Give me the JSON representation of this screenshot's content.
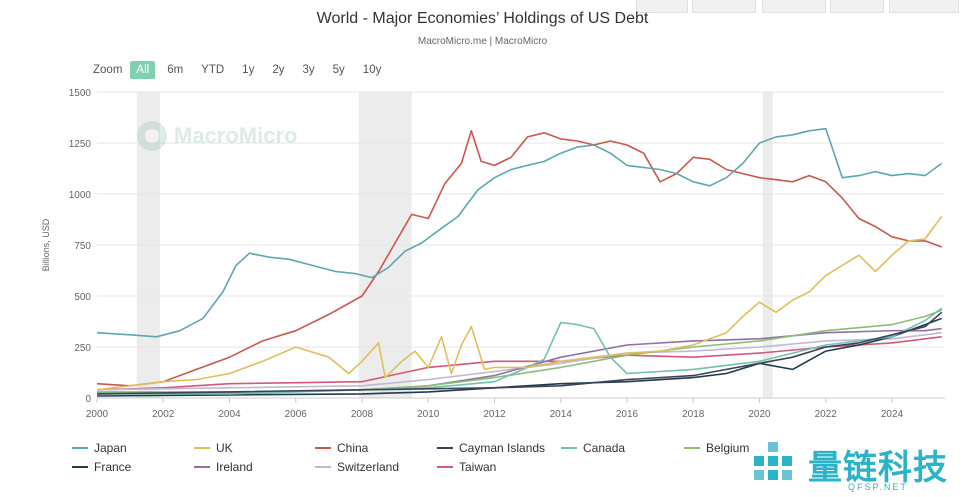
{
  "header": {
    "title": "World - Major Economies’ Holdings of US Debt",
    "subtitle": "MacroMicro.me | MacroMicro"
  },
  "zoom": {
    "label": "Zoom",
    "buttons": [
      "All",
      "6m",
      "YTD",
      "1y",
      "2y",
      "3y",
      "5y",
      "10y"
    ],
    "active": "All"
  },
  "watermark": {
    "text": "MacroMicro"
  },
  "brand": {
    "text": "量链科技",
    "sub": "QFSP.NET",
    "color": "#2bb3c7"
  },
  "chart_data": {
    "type": "line",
    "title": "World - Major Economies’ Holdings of US Debt",
    "ylabel": "Billions, USD",
    "xlabel": "",
    "xlim": [
      2000,
      2025.6
    ],
    "ylim": [
      0,
      1500
    ],
    "yticks": [
      0,
      250,
      500,
      750,
      1000,
      1250,
      1500
    ],
    "xticks": [
      2000,
      2002,
      2004,
      2006,
      2008,
      2010,
      2012,
      2014,
      2016,
      2018,
      2020,
      2022,
      2024
    ],
    "grid": true,
    "legend_position": "bottom",
    "recession_bands": [
      [
        2001.2,
        2001.9
      ],
      [
        2007.9,
        2009.5
      ],
      [
        2020.1,
        2020.4
      ]
    ],
    "series": [
      {
        "name": "Japan",
        "color": "#5aa8b0",
        "x": [
          2000,
          2001,
          2001.8,
          2002.5,
          2003.2,
          2003.8,
          2004.2,
          2004.6,
          2005.2,
          2005.8,
          2006.5,
          2007.2,
          2007.8,
          2008.3,
          2008.8,
          2009.3,
          2009.8,
          2010.3,
          2010.9,
          2011.5,
          2012,
          2012.5,
          2013,
          2013.5,
          2014,
          2014.5,
          2015,
          2015.5,
          2016,
          2016.5,
          2017,
          2017.5,
          2018,
          2018.5,
          2019,
          2019.5,
          2020,
          2020.5,
          2021,
          2021.5,
          2022,
          2022.5,
          2023,
          2023.5,
          2024,
          2024.5,
          2025,
          2025.5
        ],
        "y": [
          320,
          310,
          300,
          330,
          390,
          520,
          650,
          710,
          690,
          680,
          650,
          620,
          610,
          590,
          640,
          720,
          760,
          820,
          890,
          1020,
          1080,
          1120,
          1140,
          1160,
          1200,
          1230,
          1240,
          1200,
          1140,
          1130,
          1120,
          1100,
          1060,
          1040,
          1080,
          1150,
          1250,
          1280,
          1290,
          1310,
          1320,
          1080,
          1090,
          1110,
          1090,
          1100,
          1090,
          1150
        ]
      },
      {
        "name": "UK",
        "color": "#e0bf5a",
        "x": [
          2000,
          2001,
          2002,
          2003,
          2004,
          2005,
          2006,
          2007,
          2007.6,
          2008,
          2008.5,
          2008.7,
          2009.2,
          2009.6,
          2010,
          2010.4,
          2010.7,
          2011,
          2011.3,
          2011.7,
          2012,
          2013,
          2014,
          2015,
          2016,
          2017,
          2018,
          2018.5,
          2019,
          2019.5,
          2020,
          2020.5,
          2021,
          2021.5,
          2022,
          2022.5,
          2023,
          2023.5,
          2024,
          2024.5,
          2025,
          2025.5
        ],
        "y": [
          40,
          60,
          80,
          90,
          120,
          180,
          250,
          200,
          120,
          180,
          270,
          100,
          180,
          230,
          150,
          300,
          120,
          260,
          350,
          140,
          150,
          150,
          180,
          200,
          220,
          230,
          260,
          290,
          320,
          400,
          470,
          420,
          480,
          520,
          600,
          650,
          700,
          620,
          700,
          770,
          780,
          890
        ]
      },
      {
        "name": "China",
        "color": "#c9574c",
        "x": [
          2000,
          2001,
          2002,
          2003,
          2004,
          2005,
          2006,
          2007,
          2008,
          2008.5,
          2009,
          2009.5,
          2010,
          2010.5,
          2011,
          2011.3,
          2011.6,
          2012,
          2012.5,
          2013,
          2013.5,
          2014,
          2014.5,
          2015,
          2015.5,
          2016,
          2016.5,
          2017,
          2017.5,
          2018,
          2018.5,
          2019,
          2019.5,
          2020,
          2020.5,
          2021,
          2021.5,
          2022,
          2022.5,
          2023,
          2023.5,
          2024,
          2024.5,
          2025,
          2025.5
        ],
        "y": [
          70,
          60,
          80,
          140,
          200,
          280,
          330,
          410,
          500,
          620,
          760,
          900,
          880,
          1050,
          1150,
          1310,
          1160,
          1140,
          1180,
          1280,
          1300,
          1270,
          1260,
          1240,
          1260,
          1240,
          1200,
          1060,
          1100,
          1180,
          1170,
          1120,
          1100,
          1080,
          1070,
          1060,
          1090,
          1060,
          980,
          880,
          840,
          790,
          770,
          770,
          740
        ]
      },
      {
        "name": "Cayman Islands",
        "color": "#3e4258",
        "x": [
          2000,
          2004,
          2008,
          2010,
          2012,
          2014,
          2016,
          2018,
          2019,
          2020,
          2021,
          2022,
          2023,
          2024,
          2025,
          2025.5
        ],
        "y": [
          20,
          30,
          40,
          45,
          50,
          60,
          90,
          110,
          140,
          170,
          200,
          250,
          270,
          310,
          350,
          420
        ]
      },
      {
        "name": "Canada",
        "color": "#6fc3ad",
        "x": [
          2000,
          2004,
          2008,
          2010,
          2012,
          2013,
          2013.5,
          2014,
          2014.5,
          2015,
          2015.5,
          2016,
          2018,
          2020,
          2022,
          2024,
          2025,
          2025.5
        ],
        "y": [
          20,
          20,
          40,
          50,
          80,
          150,
          190,
          370,
          360,
          340,
          200,
          120,
          140,
          180,
          260,
          300,
          380,
          440
        ]
      },
      {
        "name": "Belgium",
        "color": "#8bbf73",
        "x": [
          2000,
          2004,
          2008,
          2010,
          2012,
          2014,
          2016,
          2018,
          2020,
          2022,
          2024,
          2025,
          2025.5
        ],
        "y": [
          30,
          30,
          40,
          60,
          100,
          150,
          210,
          250,
          280,
          330,
          360,
          400,
          430
        ]
      },
      {
        "name": "France",
        "color": "#1f3b4d",
        "x": [
          2000,
          2004,
          2008,
          2010,
          2012,
          2014,
          2016,
          2018,
          2019,
          2020,
          2021,
          2022,
          2023,
          2024,
          2025,
          2025.5
        ],
        "y": [
          10,
          15,
          20,
          30,
          50,
          70,
          80,
          100,
          120,
          170,
          140,
          230,
          260,
          300,
          360,
          390
        ]
      },
      {
        "name": "Ireland",
        "color": "#9070a8",
        "x": [
          2000,
          2004,
          2008,
          2010,
          2012,
          2014,
          2016,
          2018,
          2020,
          2022,
          2024,
          2025,
          2025.5
        ],
        "y": [
          25,
          25,
          40,
          60,
          110,
          200,
          260,
          280,
          290,
          320,
          330,
          330,
          340
        ]
      },
      {
        "name": "Switzerland",
        "color": "#c2b8d6",
        "x": [
          2000,
          2004,
          2008,
          2010,
          2012,
          2014,
          2016,
          2018,
          2020,
          2022,
          2024,
          2025,
          2025.5
        ],
        "y": [
          40,
          50,
          60,
          90,
          130,
          170,
          220,
          230,
          250,
          280,
          290,
          310,
          320
        ]
      },
      {
        "name": "Taiwan",
        "color": "#d4587a",
        "x": [
          2000,
          2002,
          2004,
          2006,
          2008,
          2010,
          2012,
          2014,
          2016,
          2018,
          2020,
          2022,
          2024,
          2025,
          2025.5
        ],
        "y": [
          40,
          50,
          70,
          75,
          80,
          150,
          180,
          180,
          210,
          200,
          220,
          250,
          270,
          290,
          300
        ]
      }
    ]
  }
}
